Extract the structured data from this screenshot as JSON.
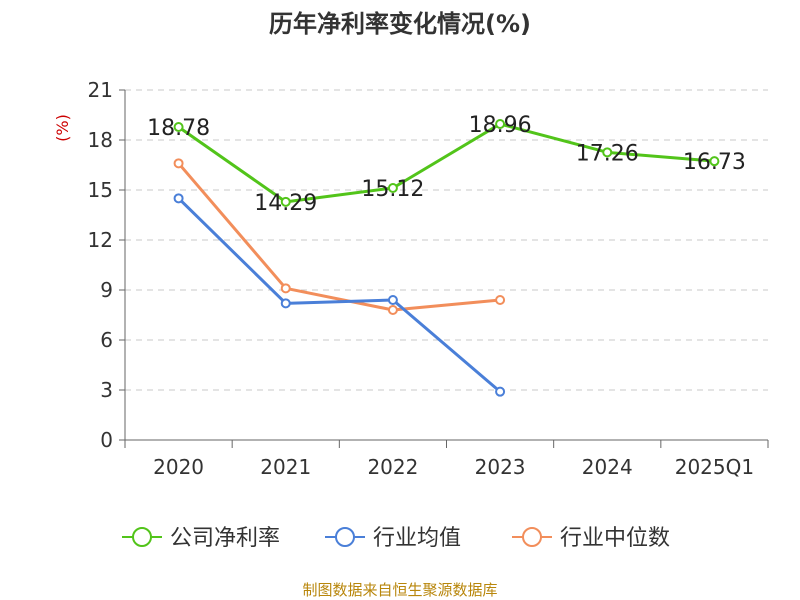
{
  "chart_data": {
    "type": "line",
    "title": "历年净利率变化情况(%)",
    "ylabel": "(%)",
    "categories": [
      "2020",
      "2021",
      "2022",
      "2023",
      "2024",
      "2025Q1"
    ],
    "yticks": [
      "0",
      "3",
      "6",
      "9",
      "12",
      "15",
      "18",
      "21"
    ],
    "ylim": [
      0,
      21
    ],
    "grid": true,
    "legend_placement": "bottom",
    "series": [
      {
        "name": "公司净利率",
        "color": "#52c41a",
        "values": [
          18.78,
          14.29,
          15.12,
          18.96,
          17.26,
          16.73
        ],
        "labels": [
          "18.78",
          "14.29",
          "15.12",
          "18.96",
          "17.26",
          "16.73"
        ]
      },
      {
        "name": "行业均值",
        "color": "#4a7fd8",
        "values": [
          14.5,
          8.2,
          8.4,
          2.9,
          null,
          null
        ]
      },
      {
        "name": "行业中位数",
        "color": "#f28e5b",
        "values": [
          16.6,
          9.1,
          7.8,
          8.4,
          null,
          null
        ]
      }
    ]
  },
  "source": "制图数据来自恒生聚源数据库"
}
